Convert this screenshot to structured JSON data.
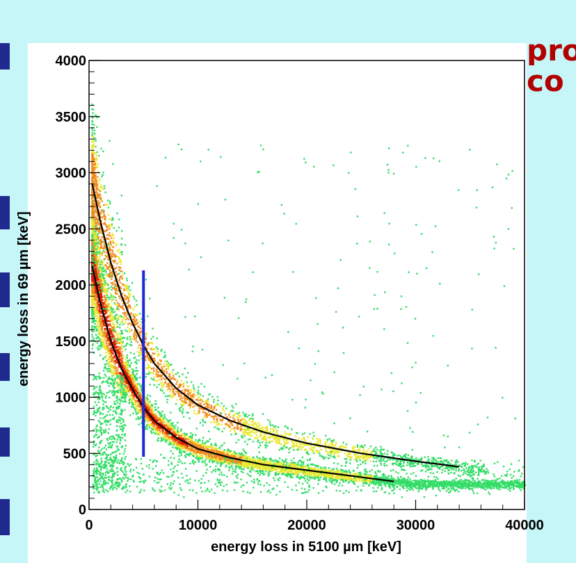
{
  "background_text": {
    "line1": "pro",
    "line2": "co"
  },
  "chart_data": {
    "type": "heatmap",
    "xlabel": "energy loss in 5100 µm [keV]",
    "ylabel": "energy loss in 69 µm [keV]",
    "xlim": [
      0,
      40000
    ],
    "ylim": [
      0,
      4000
    ],
    "x_ticks": [
      0,
      10000,
      20000,
      30000,
      40000
    ],
    "y_ticks": [
      0,
      500,
      1000,
      1500,
      2000,
      2500,
      3000,
      3500,
      4000
    ],
    "x_tick_labels": [
      "0",
      "10000",
      "20000",
      "30000",
      "40000"
    ],
    "y_tick_labels": [
      "0",
      "500",
      "1000",
      "1500",
      "2000",
      "2500",
      "3000",
      "3500",
      "4000"
    ],
    "grid": false,
    "colors": {
      "low": "#33dd66",
      "mid": "#e8e832",
      "high": "#f08c1e",
      "peak": "#d81e00"
    },
    "bands": [
      {
        "curve": [
          [
            300,
            2170
          ],
          [
            1000,
            1850
          ],
          [
            2000,
            1500
          ],
          [
            3000,
            1250
          ],
          [
            4000,
            1070
          ],
          [
            5000,
            910
          ],
          [
            6000,
            790
          ],
          [
            8000,
            640
          ],
          [
            10000,
            540
          ],
          [
            13000,
            460
          ],
          [
            16000,
            400
          ],
          [
            20000,
            350
          ],
          [
            24000,
            300
          ],
          [
            28000,
            250
          ]
        ],
        "count": 6000,
        "spread": 0.085
      },
      {
        "curve": [
          [
            300,
            2900
          ],
          [
            1000,
            2580
          ],
          [
            2000,
            2200
          ],
          [
            3000,
            1900
          ],
          [
            4000,
            1660
          ],
          [
            5000,
            1460
          ],
          [
            6000,
            1300
          ],
          [
            8000,
            1080
          ],
          [
            10000,
            930
          ],
          [
            13000,
            790
          ],
          [
            16000,
            690
          ],
          [
            20000,
            590
          ],
          [
            25000,
            500
          ],
          [
            30000,
            430
          ],
          [
            34000,
            380
          ]
        ],
        "count": 2600,
        "spread": 0.08
      }
    ],
    "fit_curves": [
      {
        "points": [
          [
            300,
            2170
          ],
          [
            1000,
            1850
          ],
          [
            2000,
            1500
          ],
          [
            3000,
            1250
          ],
          [
            4000,
            1070
          ],
          [
            5000,
            910
          ],
          [
            6000,
            790
          ],
          [
            8000,
            640
          ],
          [
            10000,
            540
          ],
          [
            13000,
            460
          ],
          [
            16000,
            400
          ],
          [
            20000,
            350
          ],
          [
            24000,
            300
          ],
          [
            28000,
            250
          ]
        ],
        "color": "#000000"
      },
      {
        "points": [
          [
            300,
            2900
          ],
          [
            1000,
            2580
          ],
          [
            2000,
            2200
          ],
          [
            3000,
            1900
          ],
          [
            4000,
            1660
          ],
          [
            5000,
            1460
          ],
          [
            6000,
            1300
          ],
          [
            8000,
            1080
          ],
          [
            10000,
            930
          ],
          [
            13000,
            790
          ],
          [
            16000,
            690
          ],
          [
            20000,
            590
          ],
          [
            25000,
            500
          ],
          [
            30000,
            430
          ],
          [
            34000,
            380
          ]
        ],
        "color": "#000000"
      }
    ],
    "cut_line": {
      "x": 5000,
      "y_from": 470,
      "y_to": 2130,
      "color": "#1f2ad8"
    }
  }
}
